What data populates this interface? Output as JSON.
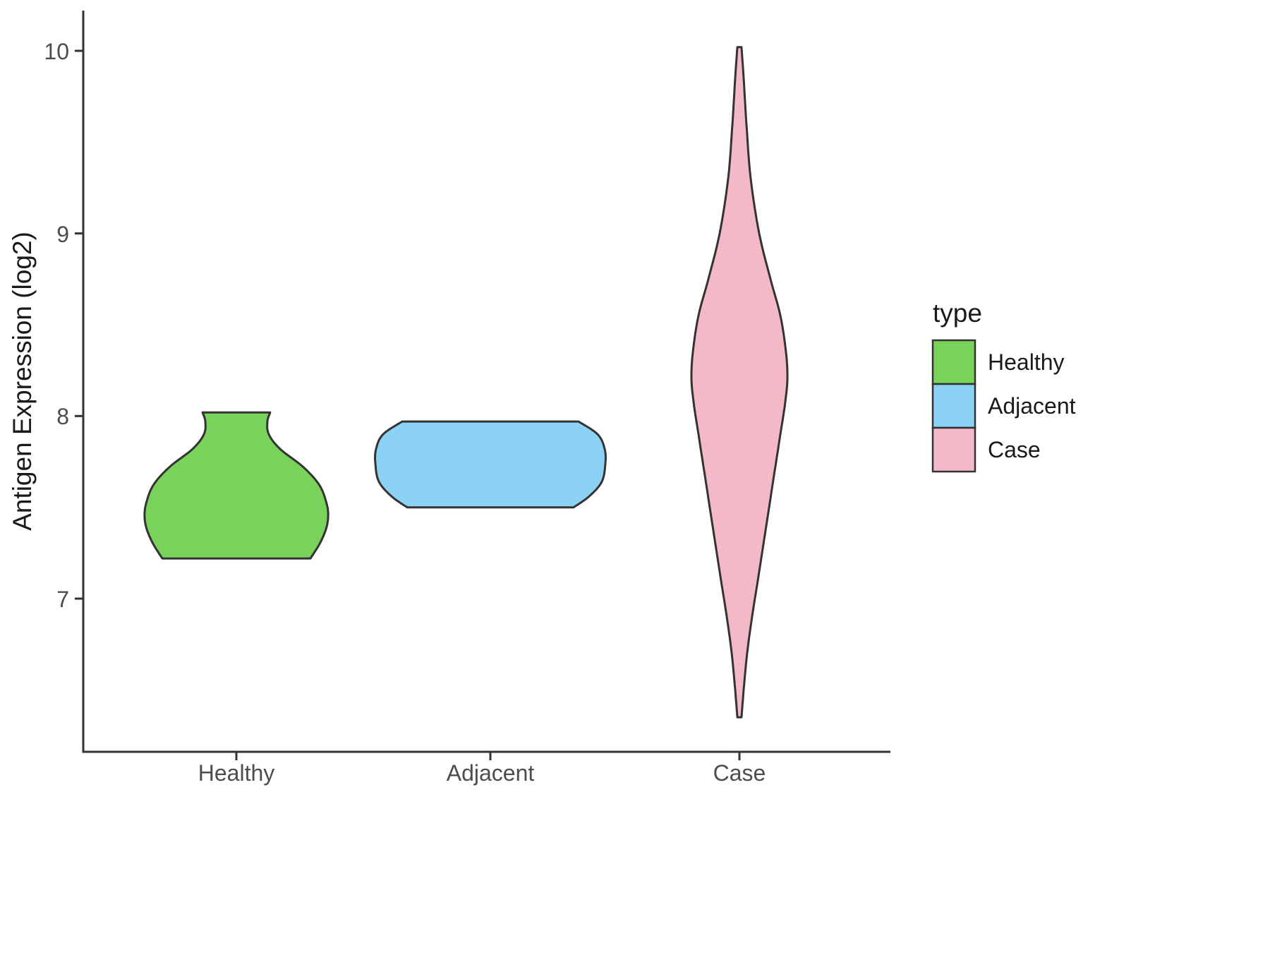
{
  "chart_data": {
    "type": "violin",
    "title": "",
    "xlabel": "",
    "ylabel": "Antigen Expression (log2)",
    "legend_title": "type",
    "categories": [
      "Healthy",
      "Adjacent",
      "Case"
    ],
    "yticks": [
      10,
      9,
      8,
      7
    ],
    "ylim": [
      6.2,
      10.2
    ],
    "grid": false,
    "legend_position": "right",
    "axis_color": "#333333",
    "tick_label_color": "#4d4d4d",
    "series": [
      {
        "name": "Healthy",
        "color": "#79D25A",
        "outline": "#333333",
        "value_range": [
          7.22,
          8.02
        ],
        "profile": [
          [
            8.02,
            0.294
          ],
          [
            7.97,
            0.27
          ],
          [
            7.9,
            0.282
          ],
          [
            7.82,
            0.38
          ],
          [
            7.72,
            0.583
          ],
          [
            7.62,
            0.724
          ],
          [
            7.52,
            0.785
          ],
          [
            7.45,
            0.798
          ],
          [
            7.38,
            0.779
          ],
          [
            7.3,
            0.724
          ],
          [
            7.22,
            0.644
          ]
        ]
      },
      {
        "name": "Adjacent",
        "color": "#8CD2F4",
        "outline": "#333333",
        "value_range": [
          7.5,
          7.97
        ],
        "profile": [
          [
            7.97,
            0.767
          ],
          [
            7.9,
            0.933
          ],
          [
            7.82,
            0.994
          ],
          [
            7.74,
            1.0
          ],
          [
            7.64,
            0.969
          ],
          [
            7.56,
            0.859
          ],
          [
            7.5,
            0.724
          ]
        ]
      },
      {
        "name": "Case",
        "color": "#F4B9C6",
        "outline": "#333333",
        "value_range": [
          6.35,
          10.02
        ],
        "profile": [
          [
            10.02,
            0.018
          ],
          [
            9.85,
            0.037
          ],
          [
            9.6,
            0.061
          ],
          [
            9.3,
            0.098
          ],
          [
            9.0,
            0.172
          ],
          [
            8.75,
            0.27
          ],
          [
            8.55,
            0.356
          ],
          [
            8.35,
            0.405
          ],
          [
            8.2,
            0.417
          ],
          [
            8.05,
            0.393
          ],
          [
            7.9,
            0.356
          ],
          [
            7.7,
            0.307
          ],
          [
            7.5,
            0.258
          ],
          [
            7.3,
            0.209
          ],
          [
            7.1,
            0.16
          ],
          [
            6.9,
            0.11
          ],
          [
            6.7,
            0.067
          ],
          [
            6.5,
            0.037
          ],
          [
            6.35,
            0.018
          ]
        ]
      }
    ]
  }
}
